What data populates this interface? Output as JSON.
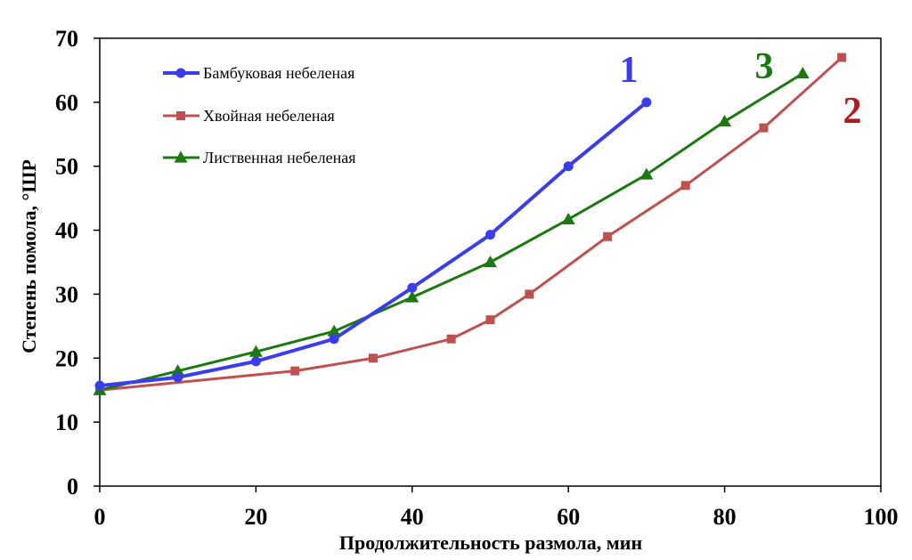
{
  "chart_data": {
    "type": "line",
    "title": "",
    "xlabel": "Продолжительность размола, мин",
    "ylabel": "Степень помола,  °ШР",
    "xlim": [
      0,
      100
    ],
    "ylim": [
      0,
      70
    ],
    "xticks": [
      0,
      20,
      40,
      60,
      80,
      100
    ],
    "yticks": [
      0,
      10,
      20,
      30,
      40,
      50,
      60,
      70
    ],
    "grid": false,
    "legend_position": "top-left",
    "series": [
      {
        "name": "Бамбуковая небеленая",
        "marker": "circle",
        "color": "#3a3cf0",
        "label": "1",
        "x": [
          0,
          10,
          20,
          30,
          40,
          50,
          60,
          70
        ],
        "y": [
          15.7,
          17.0,
          19.5,
          23.0,
          31.0,
          39.3,
          50.0,
          60.0
        ]
      },
      {
        "name": "Хвойная небеленая",
        "marker": "square",
        "color": "#c0504d",
        "label": "2",
        "x": [
          0,
          25,
          35,
          45,
          50,
          55,
          65,
          75,
          85,
          95
        ],
        "y": [
          15.0,
          18.0,
          20.0,
          23.0,
          26.0,
          30.0,
          39.0,
          47.0,
          56.0,
          67.0
        ]
      },
      {
        "name": "Лиственная небеленая",
        "marker": "triangle",
        "color": "#1a7a10",
        "label": "3",
        "x": [
          0,
          10,
          20,
          30,
          40,
          50,
          60,
          70,
          80,
          90
        ],
        "y": [
          15.0,
          18.0,
          21.0,
          24.2,
          29.5,
          35.0,
          41.7,
          48.7,
          57.0,
          64.5
        ]
      }
    ],
    "series_label_colors": {
      "1": "#3a3cf0",
      "2": "#b01c1c",
      "3": "#1a7a10"
    }
  }
}
